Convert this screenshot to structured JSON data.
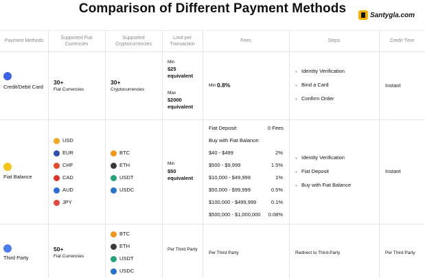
{
  "title": "Comparison of Different Payment Methods",
  "watermark": "Santygla.com",
  "headers": {
    "methods": "Payment Methods",
    "fiat": "Supported Fiat Currencies",
    "crypto": "Supported Cryptocurrencies",
    "limit": "Limit per Transaction",
    "fees": "Fees",
    "steps": "Steps",
    "credit": "Credit Time"
  },
  "rows": {
    "card": {
      "method": "Credit/Debit Card",
      "fiat_count": "30+",
      "fiat_label": "Fiat Currencies",
      "crypto_count": "30+",
      "crypto_label": "Cryptocurrencies",
      "limit_min_label": "Min",
      "limit_min_value": "$25 equivalent",
      "limit_max_label": "Max",
      "limit_max_value": "$2000 equivalent",
      "fee_prefix": "Min",
      "fee_value": "0.8%",
      "steps": [
        "Identity Verification",
        "Bind a Card",
        "Confirm Order"
      ],
      "credit": "Instant"
    },
    "fiat": {
      "method": "Fiat Balance",
      "fiat_list": [
        "USD",
        "EUR",
        "CHF",
        "CAD",
        "AUD",
        "JPY"
      ],
      "crypto_list": [
        "BTC",
        "ETH",
        "USDT",
        "USDC"
      ],
      "limit_min_label": "Min",
      "limit_min_value": "$50 equivalent",
      "fee_deposit_label": "Fiat Deposit:",
      "fee_deposit_value": "0 Fees",
      "fee_buy_label": "Buy with Fiat Balance:",
      "fee_tiers": [
        {
          "range": "$40 - $499",
          "fee": "2%"
        },
        {
          "range": "$500 - $9,999",
          "fee": "1.5%"
        },
        {
          "range": "$10,000 - $49,999",
          "fee": "1%"
        },
        {
          "range": "$50,000 - $99,999",
          "fee": "0.5%"
        },
        {
          "range": "$100,000 - $499,999",
          "fee": "0.1%"
        },
        {
          "range": "$500,000 - $1,000,000",
          "fee": "0.08%"
        }
      ],
      "steps": [
        "Identity Verification",
        "Fiat Deposit",
        "Buy with Fiat Balance"
      ],
      "credit": "Instant"
    },
    "third": {
      "method": "Third Party",
      "fiat_count": "50+",
      "fiat_label": "Fiat Currencies",
      "crypto_list": [
        "BTC",
        "ETH",
        "USDT",
        "USDC"
      ],
      "limit": "Per Third Party",
      "fees": "Per Third Party",
      "steps": "Redirect to Third-Party",
      "credit": "Per Third Party"
    }
  },
  "colors": {
    "usd": "#f3a81b",
    "eur": "#2d4fb3",
    "chf": "#e44b2a",
    "cad": "#e2342c",
    "aud": "#2a6fd8",
    "jpy": "#e6483d",
    "btc": "#f4961b",
    "eth": "#3a3a3a",
    "usdt": "#26a17b",
    "usdc": "#2775ca",
    "card": "#3d63e6",
    "fiat_icon": "#f5c518",
    "third_icon": "#4a7df0"
  }
}
